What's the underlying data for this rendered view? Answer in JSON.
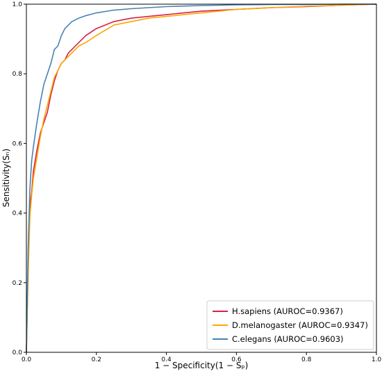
{
  "chart_data": {
    "type": "line",
    "title": "",
    "xlabel": "1 − Specificity(1 − Sₚ)",
    "ylabel": "Sensitivity(Sₙ)",
    "xlim": [
      0.0,
      1.0
    ],
    "ylim": [
      0.0,
      1.0
    ],
    "xticks": [
      "0.0",
      "0.2",
      "0.4",
      "0.6",
      "0.8",
      "1.0"
    ],
    "yticks": [
      "0.0",
      "0.2",
      "0.4",
      "0.6",
      "0.8",
      "1.0"
    ],
    "grid": false,
    "legend_position": "bottom-right",
    "series": [
      {
        "name": "H.sapiens (AUROC=0.9367)",
        "color": "#d62246",
        "x": [
          0.0,
          0.005,
          0.01,
          0.015,
          0.02,
          0.03,
          0.04,
          0.05,
          0.06,
          0.07,
          0.08,
          0.09,
          0.1,
          0.11,
          0.12,
          0.13,
          0.15,
          0.17,
          0.2,
          0.25,
          0.3,
          0.35,
          0.4,
          0.5,
          0.6,
          0.7,
          0.8,
          0.9,
          1.0
        ],
        "y": [
          0.0,
          0.25,
          0.42,
          0.46,
          0.52,
          0.58,
          0.63,
          0.66,
          0.69,
          0.74,
          0.78,
          0.81,
          0.83,
          0.84,
          0.86,
          0.87,
          0.89,
          0.91,
          0.93,
          0.95,
          0.96,
          0.965,
          0.97,
          0.98,
          0.985,
          0.99,
          0.993,
          0.997,
          1.0
        ]
      },
      {
        "name": "D.melanogaster (AUROC=0.9347)",
        "color": "#ffa500",
        "x": [
          0.0,
          0.005,
          0.01,
          0.015,
          0.02,
          0.03,
          0.04,
          0.05,
          0.06,
          0.07,
          0.08,
          0.09,
          0.1,
          0.11,
          0.12,
          0.13,
          0.15,
          0.17,
          0.2,
          0.25,
          0.3,
          0.35,
          0.4,
          0.5,
          0.6,
          0.7,
          0.8,
          0.9,
          1.0
        ],
        "y": [
          0.0,
          0.22,
          0.39,
          0.45,
          0.5,
          0.56,
          0.62,
          0.67,
          0.71,
          0.75,
          0.79,
          0.81,
          0.83,
          0.84,
          0.85,
          0.86,
          0.88,
          0.89,
          0.91,
          0.94,
          0.95,
          0.96,
          0.965,
          0.975,
          0.985,
          0.99,
          0.994,
          0.997,
          1.0
        ]
      },
      {
        "name": "C.elegans (AUROC=0.9603)",
        "color": "#4682b4",
        "x": [
          0.0,
          0.005,
          0.01,
          0.015,
          0.02,
          0.03,
          0.04,
          0.05,
          0.06,
          0.07,
          0.08,
          0.09,
          0.1,
          0.11,
          0.12,
          0.13,
          0.15,
          0.17,
          0.2,
          0.25,
          0.3,
          0.35,
          0.4,
          0.5,
          0.6,
          0.7,
          0.8,
          0.9,
          1.0
        ],
        "y": [
          0.0,
          0.3,
          0.47,
          0.55,
          0.59,
          0.66,
          0.72,
          0.77,
          0.8,
          0.83,
          0.87,
          0.88,
          0.91,
          0.93,
          0.94,
          0.95,
          0.96,
          0.967,
          0.975,
          0.983,
          0.987,
          0.99,
          0.993,
          0.996,
          0.998,
          0.999,
          0.999,
          1.0,
          1.0
        ]
      }
    ]
  }
}
